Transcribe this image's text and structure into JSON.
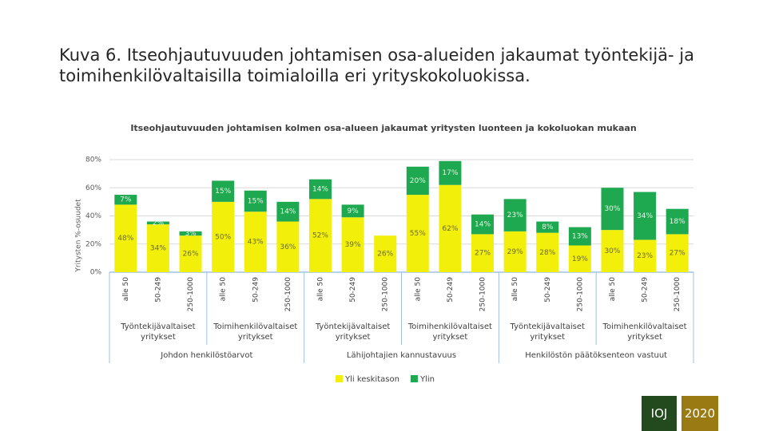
{
  "slide_title": "Kuva 6. Itseohjautuvuuden johtamisen osa-alueiden jakaumat työntekijä- ja toimihenkilövaltaisilla toimialoilla eri yrityskokoluokissa.",
  "chart_data": {
    "type": "stacked-bar",
    "title": "Itseohjautuvuuden johtamisen kolmen osa-alueen jakaumat yritysten luonteen ja kokoluokan mukaan",
    "y_label": "Yritysten %-osuudet",
    "categories": [
      "alle 50",
      "50-249",
      "250-1000",
      "alle 50",
      "50-249",
      "250-1000",
      "alle 50",
      "50-249",
      "250-1000",
      "alle 50",
      "50-249",
      "250-1000",
      "alle 50",
      "50-249",
      "250-1000",
      "alle 50",
      "50-249",
      "250-1000"
    ],
    "subgroups": [
      "Työntekijävaltaiset yritykset",
      "Toimihenkilövaltaiset yritykset",
      "Työntekijävaltaiset yritykset",
      "Toimihenkilövaltaiset yritykset",
      "Työntekijävaltaiset yritykset",
      "Toimihenkilövaltaiset yritykset"
    ],
    "groups": [
      "Johdon henkilöstöarvot",
      "Lähijohtajien kannustavuus",
      "Henkilöstön päätöksenteon vastuut"
    ],
    "series": [
      {
        "name": "Yli keskitason",
        "color": "#f2ef0a",
        "values": [
          48,
          34,
          26,
          50,
          43,
          36,
          52,
          39,
          26,
          55,
          62,
          27,
          29,
          28,
          19,
          30,
          23,
          27
        ],
        "value_labels": [
          "48%",
          "34%",
          "26%",
          "50%",
          "43%",
          "36%",
          "52%",
          "39%",
          "26%",
          "55%",
          "62%",
          "27%",
          "29%",
          "28%",
          "19%",
          "30%",
          "23%",
          "27%"
        ]
      },
      {
        "name": "Ylin",
        "color": "#1ea84f",
        "values": [
          7,
          2,
          3,
          15,
          15,
          14,
          14,
          9,
          null,
          20,
          17,
          14,
          23,
          8,
          13,
          30,
          34,
          18
        ],
        "value_labels": [
          "7%",
          "2%",
          "3%",
          "15%",
          "15%",
          "14%",
          "14%",
          "9%",
          null,
          "20%",
          "17%",
          "14%",
          "23%",
          "8%",
          "13%",
          "30%",
          "34%",
          "18%"
        ]
      }
    ],
    "ylim": [
      0,
      80
    ],
    "yticks": [
      {
        "value": 0,
        "label": "0%"
      },
      {
        "value": 20,
        "label": "20%"
      },
      {
        "value": 40,
        "label": "40%"
      },
      {
        "value": 60,
        "label": "60%"
      },
      {
        "value": 80,
        "label": "80%"
      }
    ],
    "grid": true
  },
  "footer": {
    "left": "IOJ",
    "right": "2020"
  }
}
